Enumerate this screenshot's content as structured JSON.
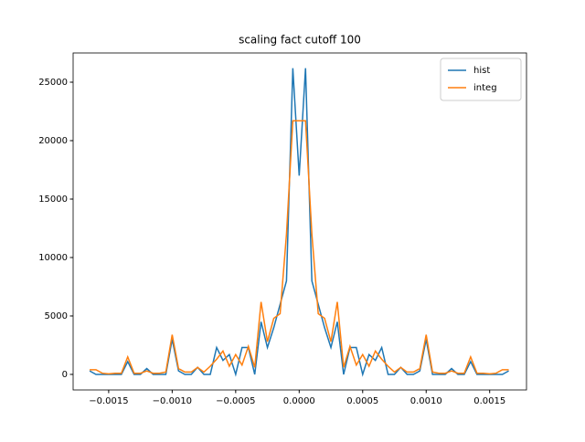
{
  "chart_data": {
    "type": "line",
    "title": "scaling fact cutoff 100",
    "x": [
      -0.00165,
      -0.0016,
      -0.00155,
      -0.0015,
      -0.00145,
      -0.0014,
      -0.00135,
      -0.0013,
      -0.00125,
      -0.0012,
      -0.00115,
      -0.0011,
      -0.00105,
      -0.001,
      -0.00095,
      -0.0009,
      -0.00085,
      -0.0008,
      -0.00075,
      -0.0007,
      -0.00065,
      -0.0006,
      -0.00055,
      -0.0005,
      -0.00045,
      -0.0004,
      -0.00035,
      -0.0003,
      -0.00025,
      -0.0002,
      -0.00015,
      -0.0001,
      -5e-05,
      0,
      5e-05,
      0.0001,
      0.00015,
      0.0002,
      0.00025,
      0.0003,
      0.00035,
      0.0004,
      0.00045,
      0.0005,
      0.00055,
      0.0006,
      0.00065,
      0.0007,
      0.00075,
      0.0008,
      0.00085,
      0.0009,
      0.00095,
      0.001,
      0.00105,
      0.0011,
      0.00115,
      0.0012,
      0.00125,
      0.0013,
      0.00135,
      0.0014,
      0.00145,
      0.0015,
      0.00155,
      0.0016,
      0.00165
    ],
    "series": [
      {
        "name": "hist",
        "color": "#1f77b4",
        "values": [
          300,
          0,
          0,
          0,
          0,
          0,
          1100,
          0,
          0,
          500,
          0,
          0,
          0,
          3000,
          300,
          0,
          0,
          600,
          0,
          0,
          2300,
          1200,
          1700,
          0,
          2300,
          2300,
          0,
          4500,
          2300,
          4000,
          6000,
          8000,
          26200,
          17000,
          26200,
          8000,
          6000,
          4000,
          2300,
          4500,
          0,
          2300,
          2300,
          0,
          1700,
          1200,
          2300,
          0,
          0,
          600,
          0,
          0,
          300,
          3000,
          0,
          0,
          0,
          500,
          0,
          0,
          1100,
          0,
          0,
          0,
          0,
          0,
          300
        ]
      },
      {
        "name": "integ",
        "color": "#ff7f0e",
        "values": [
          400,
          400,
          100,
          50,
          100,
          100,
          1500,
          100,
          100,
          300,
          100,
          100,
          200,
          3400,
          500,
          200,
          200,
          600,
          200,
          700,
          1300,
          2000,
          700,
          1700,
          800,
          2400,
          600,
          6200,
          2800,
          4800,
          5200,
          12000,
          21700,
          21700,
          21700,
          12000,
          5200,
          4800,
          2800,
          6200,
          600,
          2400,
          800,
          1700,
          700,
          2000,
          1300,
          700,
          200,
          600,
          200,
          200,
          500,
          3400,
          200,
          100,
          100,
          300,
          100,
          100,
          1500,
          100,
          100,
          50,
          100,
          400,
          400
        ]
      }
    ],
    "xlim": [
      -0.00178,
      0.00179
    ],
    "ylim": [
      -1330,
      27500
    ],
    "xticks": [
      {
        "value": -0.0015,
        "label": "−0.0015"
      },
      {
        "value": -0.001,
        "label": "−0.0010"
      },
      {
        "value": -0.0005,
        "label": "−0.0005"
      },
      {
        "value": 0,
        "label": "0.0000"
      },
      {
        "value": 0.0005,
        "label": "0.0005"
      },
      {
        "value": 0.001,
        "label": "0.0010"
      },
      {
        "value": 0.0015,
        "label": "0.0015"
      }
    ],
    "yticks": [
      0,
      5000,
      10000,
      15000,
      20000,
      25000
    ],
    "legend": "upper right"
  }
}
